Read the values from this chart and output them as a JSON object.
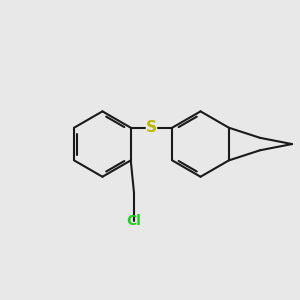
{
  "background_color": "#e8e8e8",
  "bond_color": "#1a1a1a",
  "bond_width": 1.5,
  "S_color": "#b8b800",
  "Cl_color": "#22cc22",
  "S_fontsize": 11,
  "Cl_fontsize": 10,
  "figsize": [
    3.0,
    3.0
  ],
  "dpi": 100
}
